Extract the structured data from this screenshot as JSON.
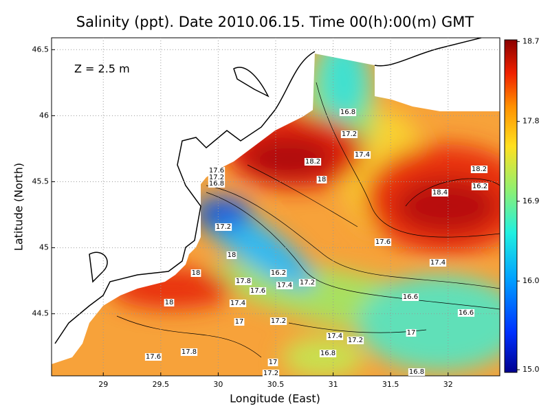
{
  "map": {
    "title": "Salinity (ppt). Date 2010.06.15. Time 00(h):00(m) GMT",
    "depth_label": "Z = 2.5 m",
    "xlabel": "Longitude (East)",
    "ylabel": "Latitude (North)",
    "xlim": [
      28.55,
      32.45
    ],
    "ylim": [
      44.03,
      46.59
    ],
    "xticks": [
      29,
      29.5,
      30,
      30.5,
      31,
      31.5,
      32
    ],
    "yticks": [
      44.5,
      45,
      45.5,
      46,
      46.5
    ],
    "grid": true,
    "colorbar": {
      "lim": [
        14.97,
        18.72
      ],
      "ticks": [
        {
          "value": 15.0,
          "label": "15.0"
        },
        {
          "value": 16.0,
          "label": "16.0"
        },
        16.9,
        17.8,
        18.7
      ]
    },
    "contour_labels": [
      "16.8",
      "17.2",
      "17.4",
      "18.2",
      "18",
      "17.6",
      "17.2",
      "16.8",
      "18.2",
      "18.4",
      "16.2",
      "17.2",
      "17.6",
      "18",
      "17.4",
      "18",
      "16.2",
      "17.8",
      "17.4",
      "17.2",
      "17.6",
      "16.6",
      "18",
      "17.4",
      "16.6",
      "17",
      "17.2",
      "17",
      "17.4",
      "17.2",
      "17.6",
      "17.8",
      "16.8",
      "17",
      "17.2",
      "16.8"
    ]
  }
}
